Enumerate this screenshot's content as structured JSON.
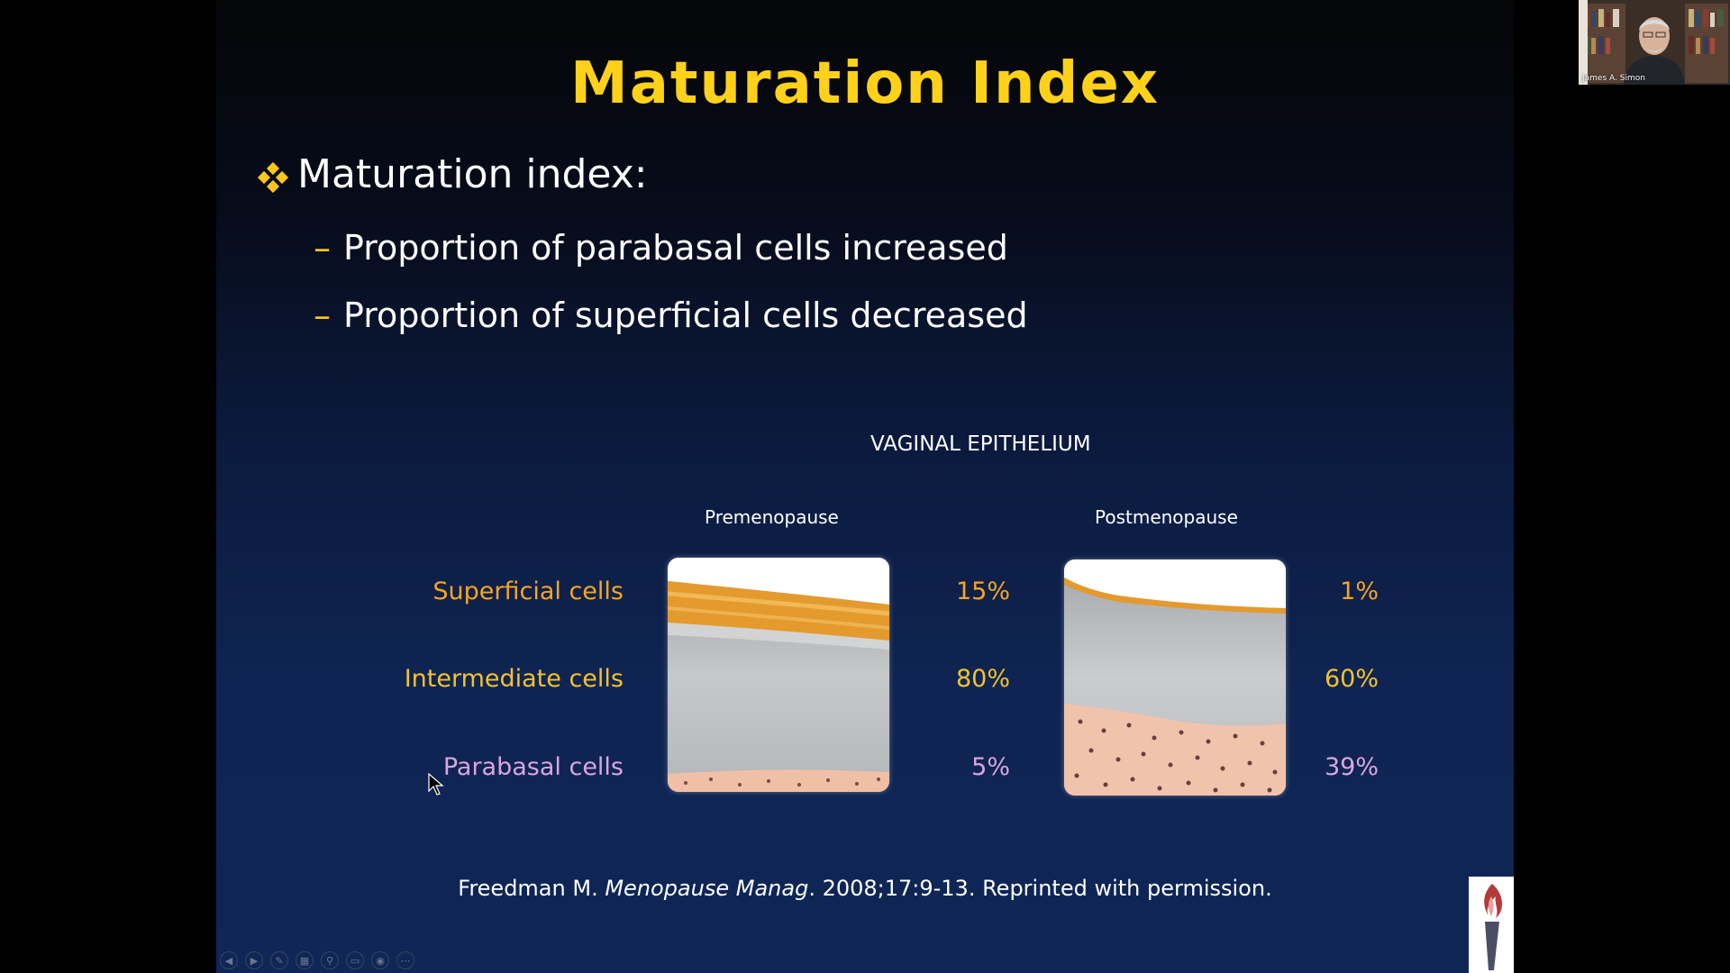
{
  "slide": {
    "title": "Maturation Index",
    "bullet": "Maturation index:",
    "sub_bullets": [
      "Proportion of parabasal cells increased",
      "Proportion of superficial cells decreased"
    ],
    "figure": {
      "heading": "VAGINAL EPITHELIUM",
      "columns": [
        "Premenopause",
        "Postmenopause"
      ],
      "rows": [
        {
          "label": "Superficial cells",
          "premenopause": "15%",
          "postmenopause": "1%",
          "color": "#f5a623"
        },
        {
          "label": "Intermediate cells",
          "premenopause": "80%",
          "postmenopause": "60%",
          "color": "#f2c230"
        },
        {
          "label": "Parabasal cells",
          "premenopause": "5%",
          "postmenopause": "39%",
          "color": "#d9a6e0"
        }
      ]
    },
    "citation": {
      "author": "Freedman M. ",
      "journal": "Menopause Manag",
      "rest": ". 2008;17:9-13. Reprinted with permission."
    },
    "colors": {
      "title": "#ffd11a",
      "bullet_marker": "#ffc61a",
      "background_bottom": "#0f2656"
    }
  },
  "toolbar": {
    "icons": [
      "previous-icon",
      "next-icon",
      "pen-icon",
      "slides-icon",
      "zoom-icon",
      "subtitles-icon",
      "camera-icon",
      "more-icon"
    ]
  },
  "webcam": {
    "participant_name": "James A. Simon"
  }
}
